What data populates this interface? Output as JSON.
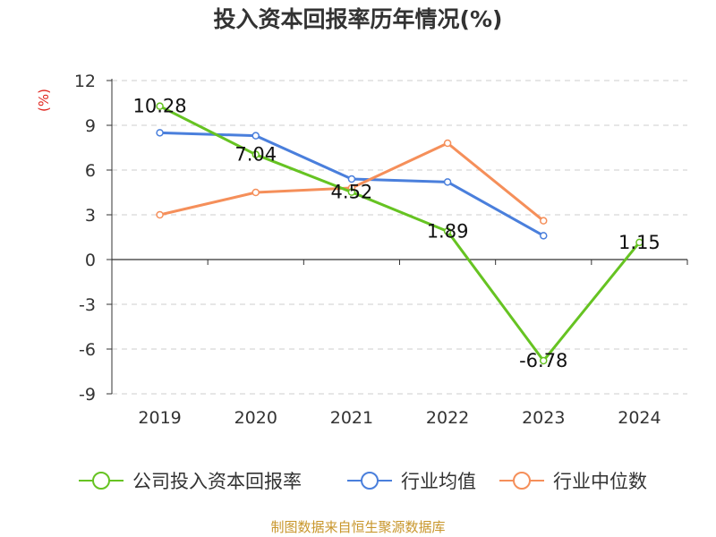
{
  "title": "投入资本回报率历年情况(%)",
  "unit_label": "(%)",
  "source": "制图数据来自恒生聚源数据库",
  "chart_data": {
    "type": "line",
    "categories": [
      "2019",
      "2020",
      "2021",
      "2022",
      "2023",
      "2024"
    ],
    "ylim": [
      -9,
      12
    ],
    "yticks": [
      12,
      9,
      6,
      3,
      0,
      -3,
      -6,
      -9
    ],
    "grid": true,
    "legend_position": "bottom",
    "series": [
      {
        "name": "公司投入资本回报率",
        "color": "#66c322",
        "values": [
          10.28,
          7.04,
          4.52,
          1.89,
          -6.78,
          1.15
        ],
        "labels": [
          "10.28",
          "7.04",
          "4.52",
          "1.89",
          "-6.78",
          "1.15"
        ]
      },
      {
        "name": "行业均值",
        "color": "#4a7fdc",
        "values": [
          8.5,
          8.3,
          5.4,
          5.2,
          1.6,
          null
        ]
      },
      {
        "name": "行业中位数",
        "color": "#f58f5a",
        "values": [
          3.0,
          4.5,
          4.8,
          7.8,
          2.6,
          null
        ]
      }
    ]
  }
}
